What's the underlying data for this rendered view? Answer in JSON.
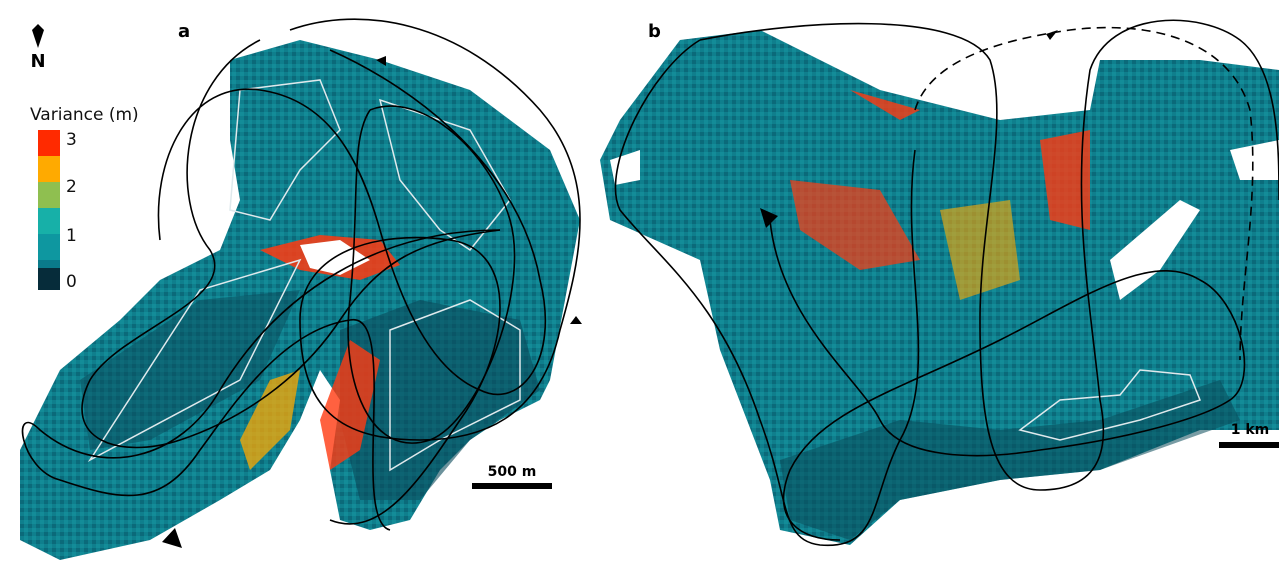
{
  "panels": [
    {
      "label": "a",
      "scale_bar": "500 m"
    },
    {
      "label": "b",
      "scale_bar": "1 km"
    }
  ],
  "north_arrow": "N",
  "legend": {
    "title": "Variance (m)",
    "ticks": [
      3,
      2,
      1,
      0
    ]
  }
}
